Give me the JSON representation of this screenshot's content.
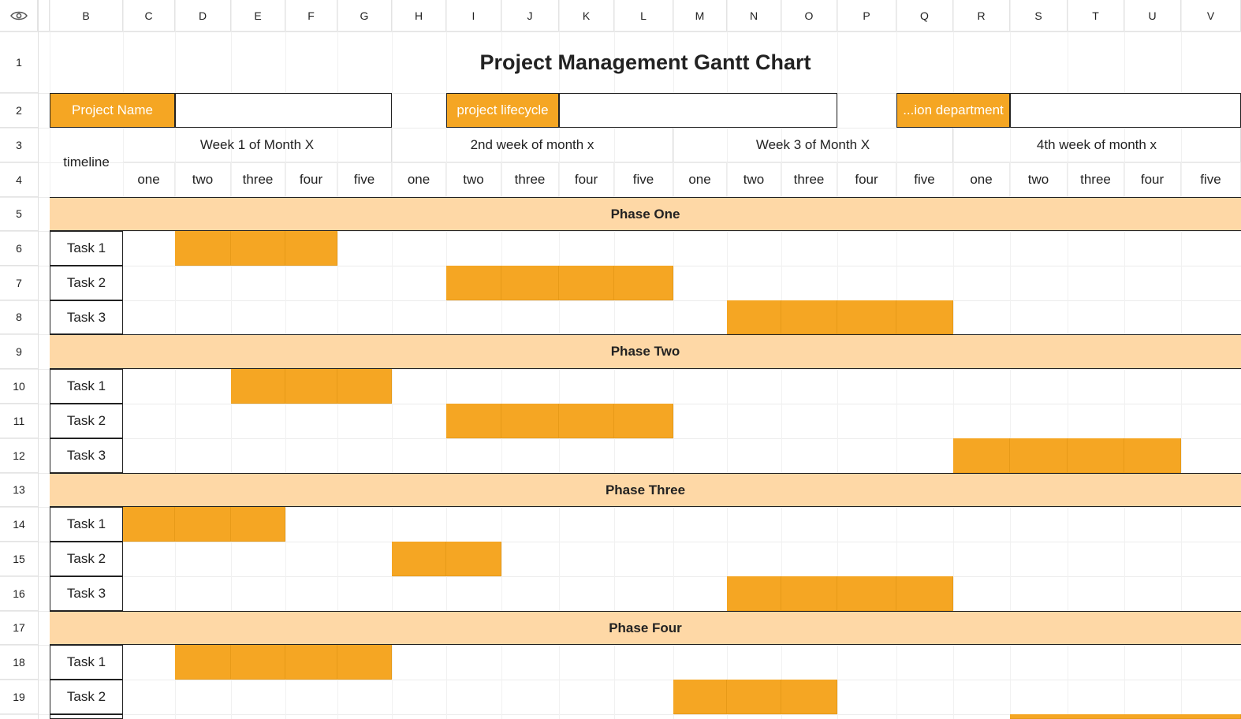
{
  "columns": [
    "B",
    "C",
    "D",
    "E",
    "F",
    "G",
    "H",
    "I",
    "J",
    "K",
    "L",
    "M",
    "N",
    "O",
    "P",
    "Q",
    "R",
    "S",
    "T",
    "U",
    "V"
  ],
  "rows": [
    "1",
    "2",
    "3",
    "4",
    "5",
    "6",
    "7",
    "8",
    "9",
    "10",
    "11",
    "12",
    "13",
    "14",
    "15",
    "16",
    "17",
    "18",
    "19"
  ],
  "corner_icon": "eye-icon",
  "title": "Project Management Gantt Chart",
  "info": {
    "project_name_label": "Project Name",
    "project_name_value": "",
    "lifecycle_label": "project lifecycle",
    "lifecycle_value": "",
    "department_label": "...ion department",
    "department_value": ""
  },
  "timeline_label": "timeline",
  "weeks": [
    "Week 1 of Month X",
    "2nd week of month x",
    "Week 3 of Month X",
    "4th week of month x"
  ],
  "days": [
    "one",
    "two",
    "three",
    "four",
    "five"
  ],
  "phases": [
    {
      "name": "Phase One",
      "tasks": [
        {
          "label": "Task 1",
          "start": 2,
          "end": 4
        },
        {
          "label": "Task 2",
          "start": 7,
          "end": 10
        },
        {
          "label": "Task 3",
          "start": 12,
          "end": 15
        }
      ]
    },
    {
      "name": "Phase Two",
      "tasks": [
        {
          "label": "Task 1",
          "start": 3,
          "end": 5
        },
        {
          "label": "Task 2",
          "start": 7,
          "end": 10
        },
        {
          "label": "Task 3",
          "start": 16,
          "end": 19
        }
      ]
    },
    {
      "name": "Phase Three",
      "tasks": [
        {
          "label": "Task 1",
          "start": 1,
          "end": 3
        },
        {
          "label": "Task 2",
          "start": 6,
          "end": 7
        },
        {
          "label": "Task 3",
          "start": 12,
          "end": 15
        }
      ]
    },
    {
      "name": "Phase Four",
      "tasks": [
        {
          "label": "Task 1",
          "start": 2,
          "end": 5
        },
        {
          "label": "Task 2",
          "start": 11,
          "end": 13
        }
      ]
    }
  ],
  "colors": {
    "bar": "#f5a623",
    "phase_band": "#fed8a6",
    "label_bg": "#f5a623"
  }
}
